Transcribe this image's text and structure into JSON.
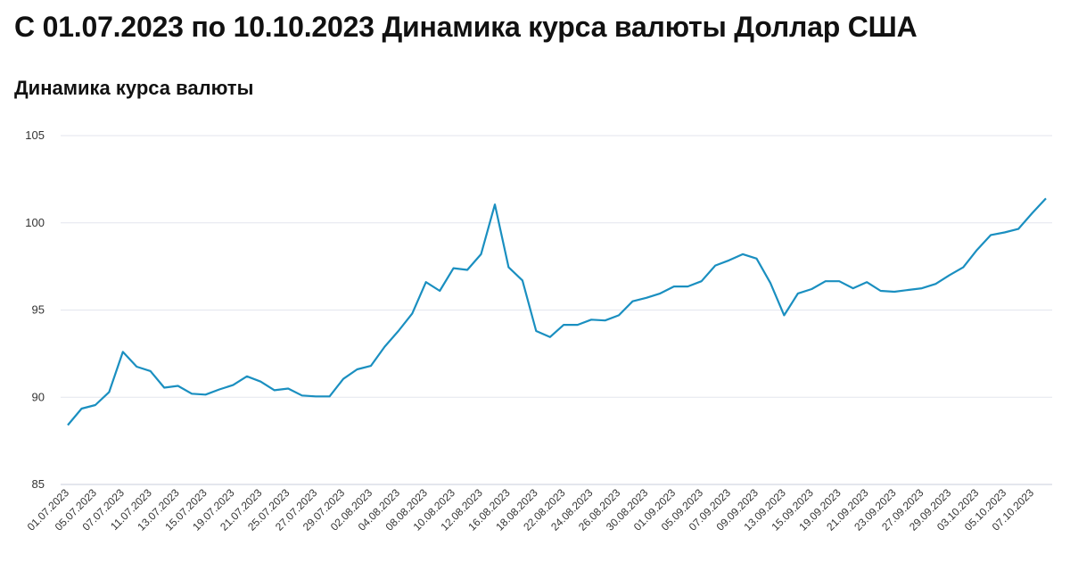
{
  "page_title": "С 01.07.2023 по 10.10.2023 Динамика курса валюты Доллар США",
  "chart_data": {
    "type": "line",
    "title": "Динамика курса валюты",
    "xlabel": "",
    "ylabel": "",
    "ylim": [
      85,
      105
    ],
    "yticks": [
      85,
      90,
      95,
      100,
      105
    ],
    "grid": true,
    "line_color": "#1a8fc0",
    "x_tick_labels": [
      "01.07.2023",
      "05.07.2023",
      "07.07.2023",
      "11.07.2023",
      "13.07.2023",
      "15.07.2023",
      "19.07.2023",
      "21.07.2023",
      "25.07.2023",
      "27.07.2023",
      "29.07.2023",
      "02.08.2023",
      "04.08.2023",
      "08.08.2023",
      "10.08.2023",
      "12.08.2023",
      "16.08.2023",
      "18.08.2023",
      "22.08.2023",
      "24.08.2023",
      "26.08.2023",
      "30.08.2023",
      "01.09.2023",
      "05.09.2023",
      "07.09.2023",
      "09.09.2023",
      "13.09.2023",
      "15.09.2023",
      "19.09.2023",
      "21.09.2023",
      "23.09.2023",
      "27.09.2023",
      "29.09.2023",
      "03.10.2023",
      "05.10.2023",
      "07.10.2023"
    ],
    "values": [
      88.4,
      89.35,
      89.55,
      90.3,
      92.6,
      91.75,
      91.5,
      90.55,
      90.65,
      90.2,
      90.15,
      90.45,
      90.7,
      91.2,
      90.9,
      90.4,
      90.5,
      90.1,
      90.05,
      90.05,
      91.05,
      91.6,
      91.8,
      92.9,
      93.8,
      94.8,
      96.6,
      96.1,
      97.4,
      97.3,
      98.2,
      101.05,
      97.45,
      96.7,
      93.8,
      93.45,
      94.15,
      94.15,
      94.45,
      94.4,
      94.7,
      95.5,
      95.7,
      95.95,
      96.35,
      96.35,
      96.65,
      97.55,
      97.85,
      98.2,
      97.95,
      96.55,
      94.7,
      95.95,
      96.2,
      96.65,
      96.65,
      96.25,
      96.6,
      96.1,
      96.05,
      96.15,
      96.25,
      96.5,
      97.0,
      97.45,
      98.45,
      99.3,
      99.45,
      99.65,
      100.55,
      101.4
    ]
  }
}
